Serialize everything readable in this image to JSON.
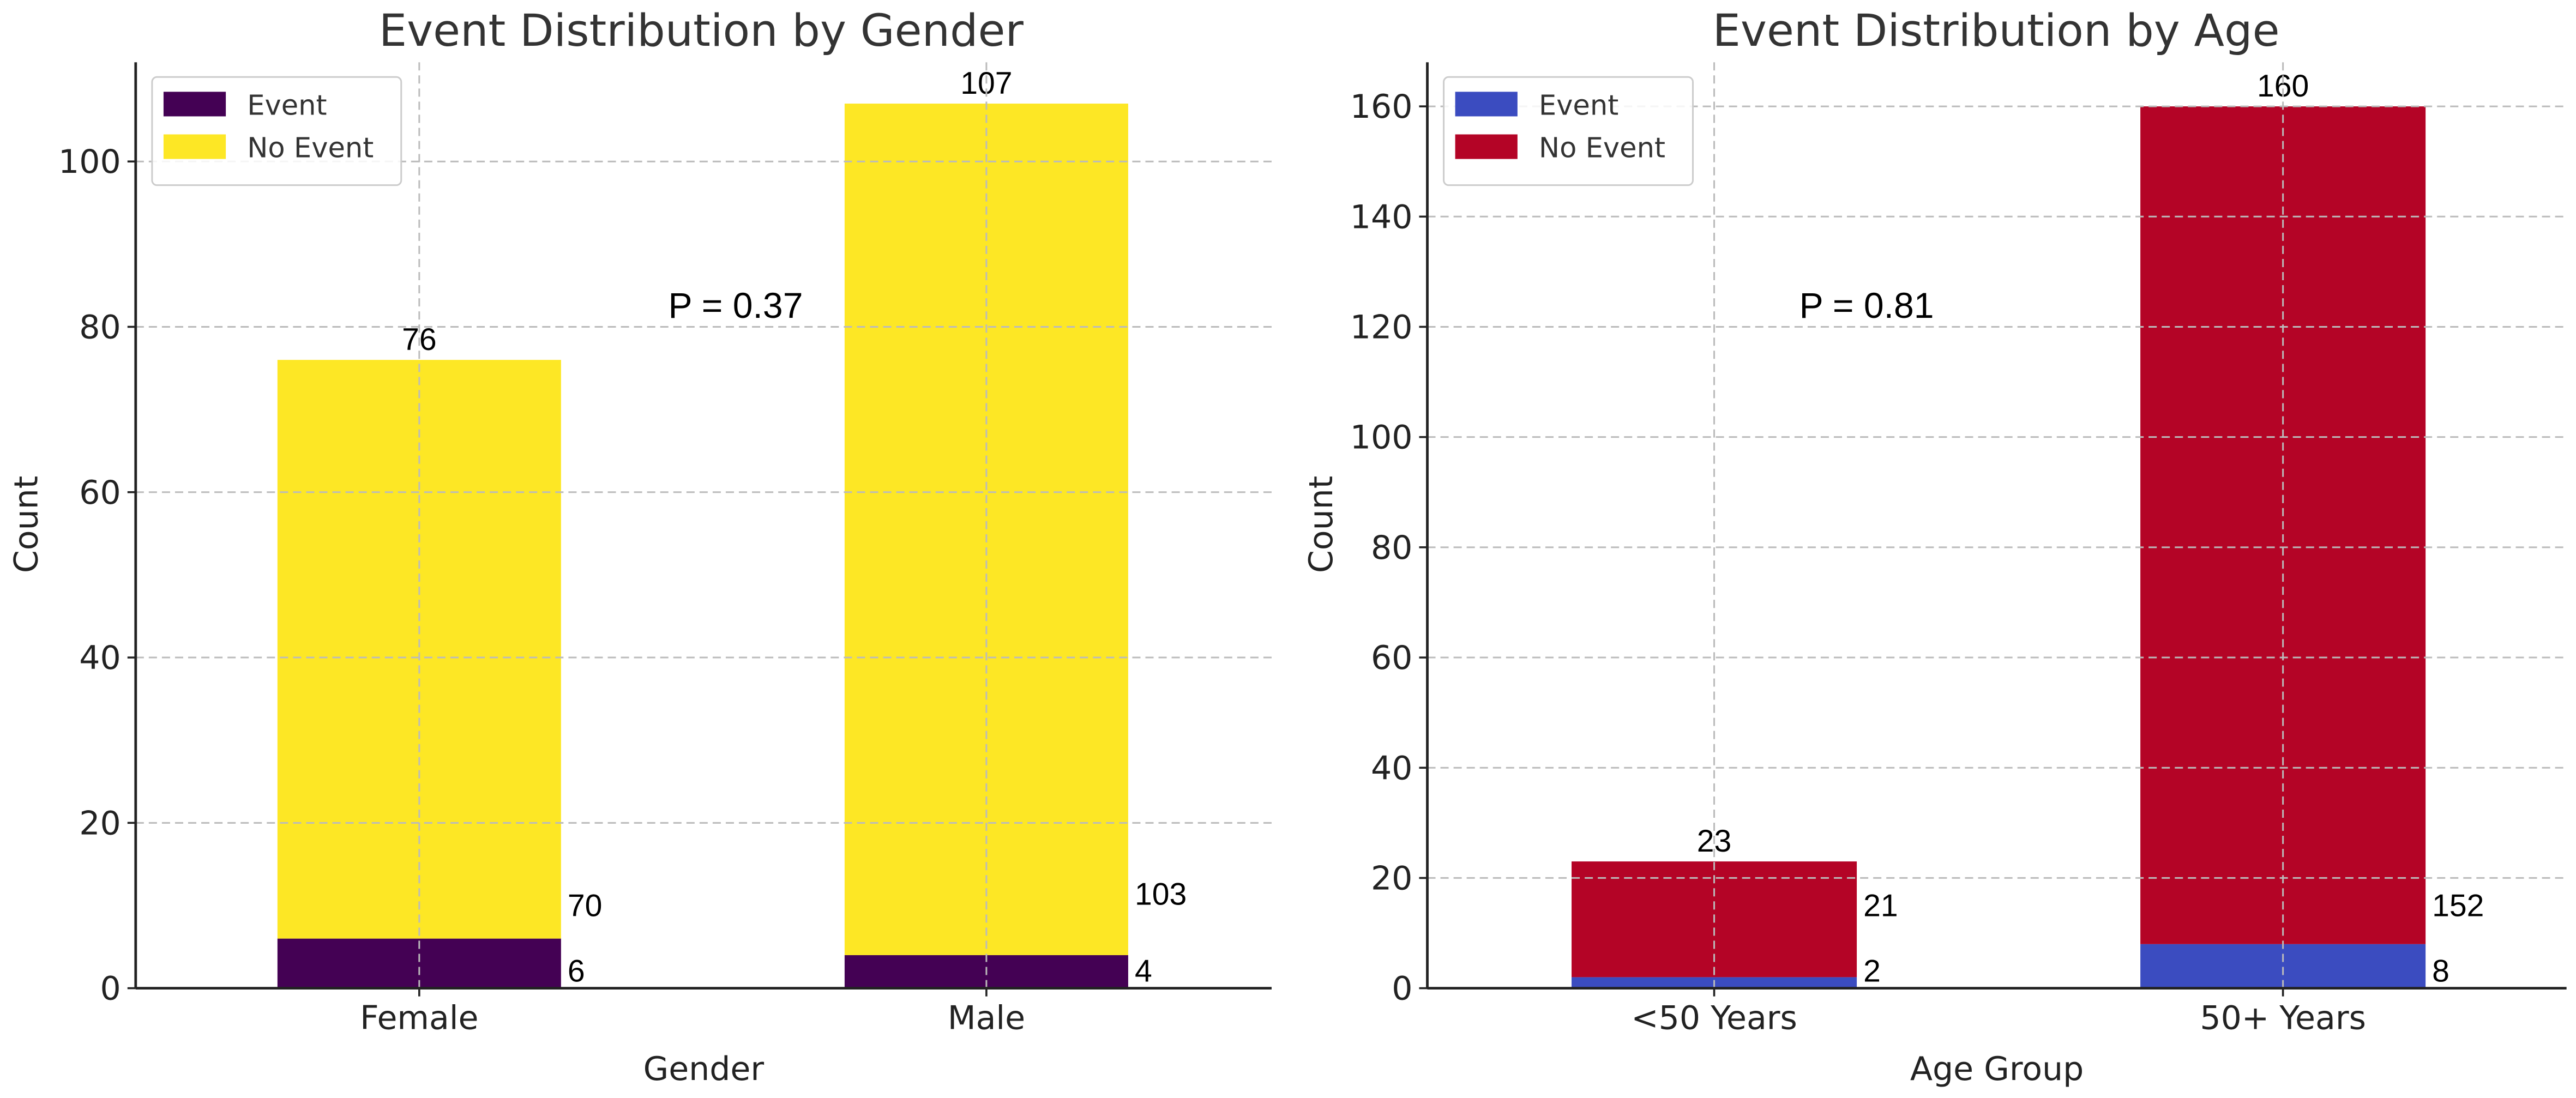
{
  "chart_data": [
    {
      "type": "bar",
      "stacked": true,
      "title": "Event Distribution by Gender",
      "xlabel": "Gender",
      "ylabel": "Count",
      "categories": [
        "Female",
        "Male"
      ],
      "series": [
        {
          "name": "Event",
          "values": [
            6,
            4
          ],
          "color": "#440154"
        },
        {
          "name": "No Event",
          "values": [
            70,
            103
          ],
          "color": "#FDE725"
        }
      ],
      "totals": [
        76,
        107
      ],
      "annotation": "P = 0.37",
      "ylim": [
        0,
        112
      ],
      "yticks": [
        0,
        20,
        40,
        60,
        80,
        100
      ],
      "grid": true,
      "legend": "top-left"
    },
    {
      "type": "bar",
      "stacked": true,
      "title": "Event Distribution by Age",
      "xlabel": "Age Group",
      "ylabel": "Count",
      "categories": [
        "<50 Years",
        "50+ Years"
      ],
      "series": [
        {
          "name": "Event",
          "values": [
            2,
            8
          ],
          "color": "#3B4CC0"
        },
        {
          "name": "No Event",
          "values": [
            21,
            152
          ],
          "color": "#B40426"
        }
      ],
      "totals": [
        23,
        160
      ],
      "annotation": "P = 0.81",
      "ylim": [
        0,
        168
      ],
      "yticks": [
        0,
        20,
        40,
        60,
        80,
        100,
        120,
        140,
        160
      ],
      "grid": true,
      "legend": "top-left"
    }
  ]
}
